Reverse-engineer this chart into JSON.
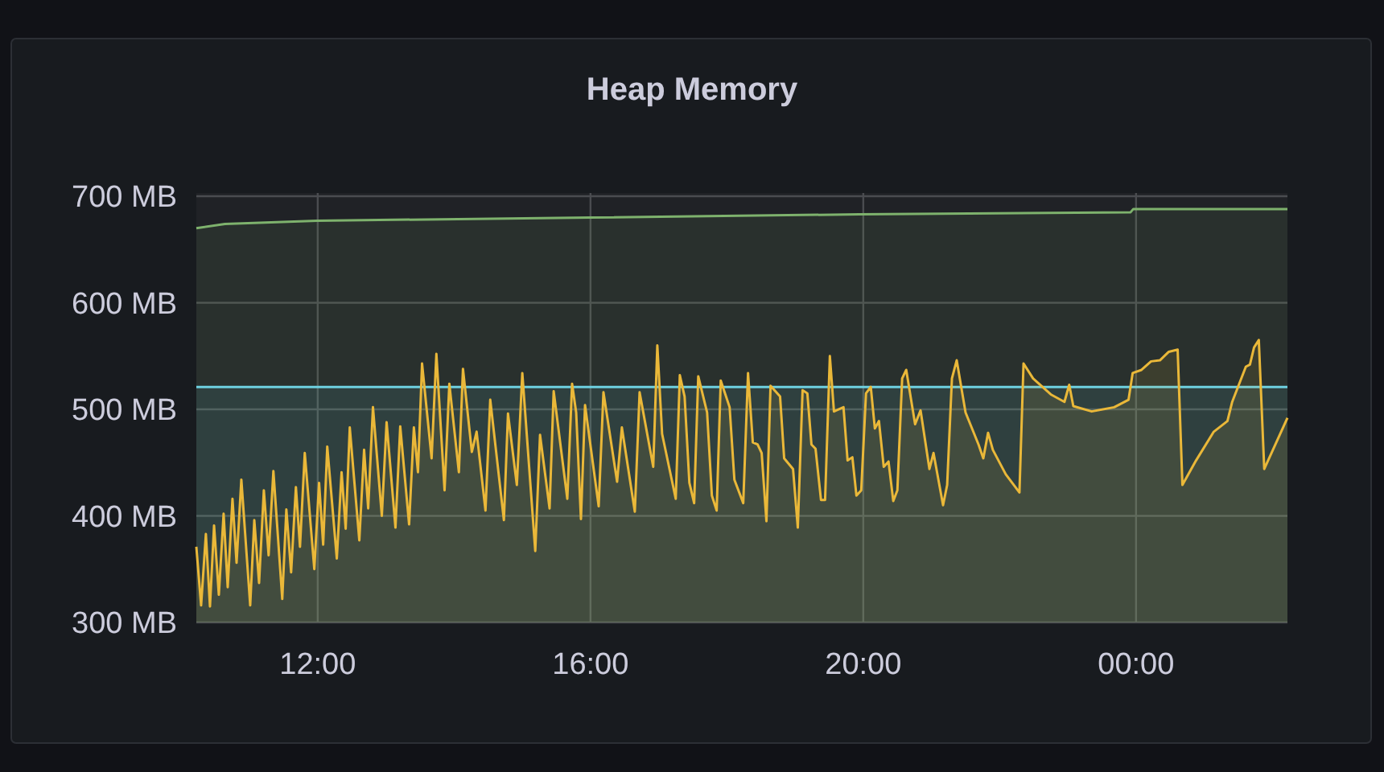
{
  "chart_data": {
    "type": "area",
    "title": "Heap Memory",
    "xlim": [
      10.22,
      26.22
    ],
    "xticks": [
      {
        "value": 12,
        "label": "12:00"
      },
      {
        "value": 16,
        "label": "16:00"
      },
      {
        "value": 20,
        "label": "20:00"
      },
      {
        "value": 24,
        "label": "00:00"
      }
    ],
    "ylim": [
      300,
      700
    ],
    "yticks": [
      {
        "value": 300,
        "label": "300 MB"
      },
      {
        "value": 400,
        "label": "400 MB"
      },
      {
        "value": 500,
        "label": "500 MB"
      },
      {
        "value": 600,
        "label": "600 MB"
      },
      {
        "value": 700,
        "label": "700 MB"
      }
    ],
    "grid": true,
    "series": [
      {
        "color": "#7eb26d",
        "x": [
          10.22,
          10.64,
          11.99,
          15.99,
          19.94,
          23.92,
          23.96,
          26.22
        ],
        "values": [
          670,
          674,
          677,
          680,
          683,
          685,
          688,
          688
        ]
      },
      {
        "color": "#6ed0e0",
        "x": [
          10.22,
          26.22
        ],
        "values": [
          521,
          521
        ]
      },
      {
        "color": "#eab839",
        "x": [
          10.22,
          10.29,
          10.36,
          10.42,
          10.48,
          10.55,
          10.62,
          10.68,
          10.75,
          10.81,
          10.88,
          11.01,
          11.07,
          11.14,
          11.21,
          11.28,
          11.35,
          11.48,
          11.54,
          11.61,
          11.68,
          11.74,
          11.81,
          11.95,
          12.02,
          12.08,
          12.14,
          12.28,
          12.35,
          12.41,
          12.47,
          12.61,
          12.68,
          12.74,
          12.81,
          12.94,
          13.01,
          13.14,
          13.21,
          13.34,
          13.41,
          13.47,
          13.53,
          13.67,
          13.74,
          13.86,
          13.93,
          14.07,
          14.13,
          14.26,
          14.33,
          14.46,
          14.53,
          14.73,
          14.79,
          14.92,
          15.0,
          15.19,
          15.26,
          15.4,
          15.46,
          15.66,
          15.73,
          15.79,
          15.86,
          15.92,
          16.12,
          16.19,
          16.39,
          16.46,
          16.65,
          16.72,
          16.92,
          16.98,
          17.05,
          17.25,
          17.31,
          17.38,
          17.45,
          17.52,
          17.58,
          17.71,
          17.78,
          17.85,
          17.91,
          18.04,
          18.11,
          18.24,
          18.31,
          18.38,
          18.45,
          18.51,
          18.58,
          18.64,
          18.78,
          18.84,
          18.97,
          19.04,
          19.11,
          19.18,
          19.24,
          19.3,
          19.38,
          19.44,
          19.51,
          19.57,
          19.71,
          19.77,
          19.84,
          19.9,
          19.97,
          20.04,
          20.11,
          20.17,
          20.23,
          20.3,
          20.37,
          20.44,
          20.5,
          20.57,
          20.63,
          20.76,
          20.84,
          20.97,
          21.03,
          21.17,
          21.23,
          21.3,
          21.37,
          21.5,
          21.69,
          21.76,
          21.83,
          21.9,
          22.09,
          22.29,
          22.35,
          22.49,
          22.75,
          22.95,
          23.02,
          23.08,
          23.35,
          23.68,
          23.89,
          23.95,
          24.08,
          24.22,
          24.35,
          24.48,
          24.61,
          24.68,
          24.88,
          25.14,
          25.34,
          25.41,
          25.61,
          25.67,
          25.73,
          25.8,
          25.88,
          26.22
        ],
        "values": [
          371,
          316,
          383,
          315,
          391,
          326,
          402,
          333,
          416,
          356,
          434,
          316,
          396,
          337,
          424,
          363,
          442,
          322,
          406,
          347,
          427,
          371,
          459,
          350,
          431,
          373,
          465,
          360,
          441,
          388,
          483,
          377,
          462,
          407,
          502,
          400,
          488,
          389,
          484,
          392,
          483,
          441,
          543,
          454,
          552,
          424,
          524,
          441,
          538,
          460,
          479,
          405,
          509,
          396,
          496,
          429,
          534,
          367,
          476,
          407,
          517,
          416,
          524,
          497,
          397,
          504,
          409,
          516,
          432,
          483,
          404,
          516,
          446,
          560,
          477,
          416,
          532,
          512,
          431,
          412,
          531,
          497,
          419,
          405,
          527,
          502,
          434,
          412,
          534,
          469,
          467,
          459,
          395,
          522,
          512,
          454,
          444,
          389,
          518,
          515,
          467,
          463,
          415,
          415,
          550,
          498,
          502,
          452,
          455,
          419,
          424,
          515,
          521,
          482,
          489,
          446,
          451,
          414,
          424,
          529,
          537,
          486,
          499,
          444,
          459,
          410,
          429,
          529,
          546,
          497,
          467,
          454,
          478,
          462,
          439,
          422,
          543,
          529,
          514,
          507,
          523,
          503,
          498,
          502,
          509,
          534,
          537,
          545,
          546,
          554,
          556,
          429,
          452,
          479,
          489,
          507,
          540,
          542,
          558,
          565,
          444,
          492
        ]
      }
    ]
  }
}
